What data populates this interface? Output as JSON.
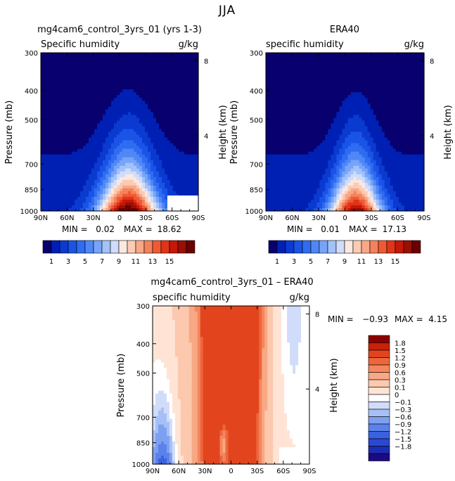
{
  "figure": {
    "season": "JJA"
  },
  "colors": {
    "main_scale": [
      "#08006e",
      "#0020b4",
      "#0a3ad0",
      "#1a54e6",
      "#2f6cf2",
      "#4f88f6",
      "#77a4f8",
      "#a2c2fa",
      "#cfdcfb",
      "#fbe8df",
      "#fbcbb4",
      "#f8a886",
      "#f4825c",
      "#ef5a34",
      "#e23418",
      "#c41808",
      "#981004",
      "#6b0000"
    ],
    "diff_scale": [
      "#1a0a84",
      "#1c2cb4",
      "#2a48d0",
      "#3a62e0",
      "#5a82ea",
      "#7ea0f0",
      "#a6c0f6",
      "#d0dcfa",
      "#ffffff",
      "#ffe4d6",
      "#fcc8ae",
      "#f8a884",
      "#f4875e",
      "#ee663c",
      "#e2451e",
      "#c82208",
      "#8c0000"
    ]
  },
  "chart_data": [
    {
      "type": "heatmap",
      "title": "mg4cam6_control_3yrs_01 (yrs 1-3)",
      "subtitle": "Specific humidity",
      "units": "g/kg",
      "ylabel": "Pressure (mb)",
      "ylabel_right": "Height (km)",
      "x_ticks": [
        "90N",
        "60N",
        "30N",
        "0",
        "30S",
        "60S",
        "90S"
      ],
      "y_ticks": [
        "300",
        "400",
        "500",
        "700",
        "850",
        "1000"
      ],
      "y_ticks_right": [
        "8",
        "4"
      ],
      "stats": {
        "min_label": "MIN =",
        "min": "0.02",
        "max_label": "MAX =",
        "max": "18.62"
      },
      "colorbar_labels": [
        "1",
        "3",
        "5",
        "7",
        "9",
        "11",
        "13",
        "15"
      ],
      "field": {
        "peak": 18.62,
        "peak_lat": 10,
        "width_low": 35,
        "width_high": 18
      }
    },
    {
      "type": "heatmap",
      "title": "ERA40",
      "subtitle": "specific humidity",
      "units": "g/kg",
      "ylabel": "Pressure (mb)",
      "ylabel_right": "Height (km)",
      "x_ticks": [
        "90N",
        "60N",
        "30N",
        "0",
        "30S",
        "60S",
        "90S"
      ],
      "y_ticks": [
        "300",
        "400",
        "500",
        "700",
        "850",
        "1000"
      ],
      "y_ticks_right": [
        "8",
        "4"
      ],
      "stats": {
        "min_label": "MIN =",
        "min": "0.01",
        "max_label": "MAX =",
        "max": "17.13"
      },
      "colorbar_labels": [
        "1",
        "3",
        "5",
        "7",
        "9",
        "11",
        "13",
        "15"
      ],
      "field": {
        "peak": 17.13,
        "peak_lat": 12,
        "width_low": 30,
        "width_high": 14
      }
    },
    {
      "type": "heatmap",
      "title": "mg4cam6_control_3yrs_01 – ERA40",
      "subtitle": "specific humidity",
      "units": "g/kg",
      "ylabel": "Pressure (mb)",
      "ylabel_right": "Height (km)",
      "x_ticks": [
        "90N",
        "60N",
        "30N",
        "0",
        "30S",
        "60S",
        "90S"
      ],
      "y_ticks": [
        "300",
        "400",
        "500",
        "700",
        "850",
        "1000"
      ],
      "y_ticks_right": [
        "8",
        "4"
      ],
      "stats": {
        "min_label": "MIN =",
        "min": "−0.93",
        "max_label": "MAX =",
        "max": "4.15"
      },
      "colorbar_labels": [
        "1.8",
        "1.5",
        "1.2",
        "0.9",
        "0.6",
        "0.3",
        "0.1",
        "0",
        "−0.1",
        "−0.3",
        "−0.6",
        "−0.9",
        "−1.2",
        "−1.5",
        "−1.8"
      ]
    }
  ]
}
